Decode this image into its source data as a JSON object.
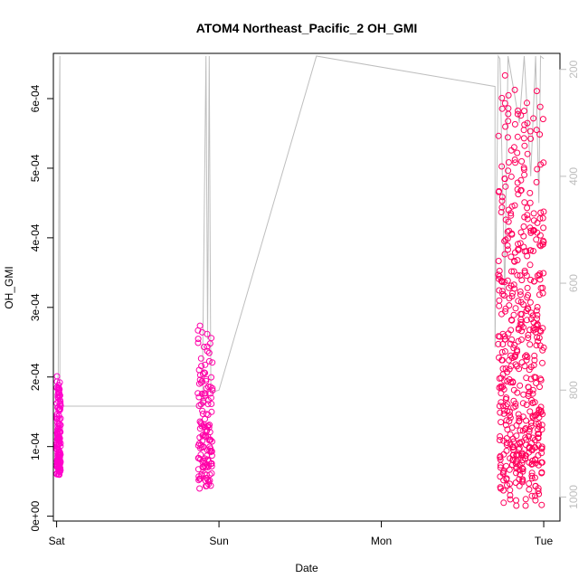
{
  "chart_data": {
    "type": "scatter",
    "title": "ATOM4 Northeast_Pacific_2 OH_GMI",
    "xlabel": "Date",
    "ylabel": "OH_GMI",
    "x_ticks": [
      "Sat",
      "Sun",
      "Mon",
      "Tue"
    ],
    "y_ticks": [
      "0e+00",
      "1e-04",
      "2e-04",
      "3e-04",
      "4e-04",
      "5e-04",
      "6e-04"
    ],
    "y_tick_values": [
      0,
      0.0001,
      0.0002,
      0.0003,
      0.0004,
      0.0005,
      0.0006
    ],
    "y2_ticks": [
      "200",
      "400",
      "600",
      "800",
      "1000"
    ],
    "y2_tick_values": [
      200,
      400,
      600,
      800,
      1000
    ],
    "xlim_days": [
      -0.02,
      3.1
    ],
    "ylim": [
      -7e-06,
      0.000665
    ],
    "y2lim": [
      1045,
      170
    ],
    "grid": false,
    "series": [
      {
        "marker": "open-circle",
        "color_low": "#ff00cc",
        "color_high": "#ff0055",
        "segments": [
          {
            "x_start": 0.0,
            "x_end": 0.025,
            "y_min": 5.5e-05,
            "y_max": 0.000215
          },
          {
            "x_start": 0.87,
            "x_end": 0.96,
            "y_min": 3.5e-05,
            "y_max": 0.000287
          },
          {
            "x_start": 2.72,
            "x_end": 3.0,
            "y_min": 1.3e-05,
            "y_max": 0.00064
          }
        ]
      },
      {
        "color": "#bebebe",
        "axis": "right",
        "points": [
          [
            0.0,
            800
          ],
          [
            0.01,
            770
          ],
          [
            0.015,
            320
          ],
          [
            0.02,
            175
          ],
          [
            0.02,
            830
          ],
          [
            0.5,
            830
          ],
          [
            0.9,
            830
          ],
          [
            0.9,
            735
          ],
          [
            0.92,
            175
          ],
          [
            0.93,
            705
          ],
          [
            0.94,
            175
          ],
          [
            0.95,
            805
          ],
          [
            1.0,
            800
          ],
          [
            1.6,
            175
          ],
          [
            2.7,
            232
          ],
          [
            2.7,
            720
          ],
          [
            2.72,
            175
          ],
          [
            2.73,
            180
          ],
          [
            2.76,
            620
          ],
          [
            2.78,
            175
          ],
          [
            2.85,
            300
          ],
          [
            2.88,
            175
          ],
          [
            2.92,
            400
          ],
          [
            2.95,
            175
          ],
          [
            2.97,
            450
          ],
          [
            2.98,
            175
          ],
          [
            3.0,
            180
          ]
        ]
      }
    ]
  }
}
